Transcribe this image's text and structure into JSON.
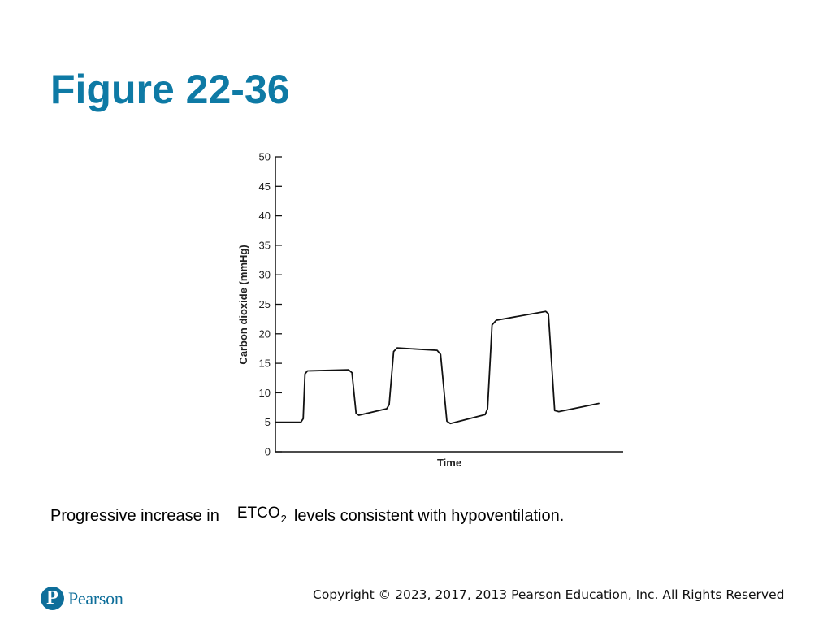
{
  "slide": {
    "title": "Figure 22-36",
    "caption_before": "Progressive increase in",
    "caption_etco": "ETCO",
    "caption_etco_sub": "2",
    "caption_after": "levels consistent with hypoventilation.",
    "logo_letter": "P",
    "logo_word": "Pearson",
    "copyright": "Copyright © 2023, 2017, 2013 Pearson Education, Inc. All Rights Reserved",
    "title_color": "#0e7aa5",
    "brand_color": "#0e6e9a"
  },
  "chart_data": {
    "type": "line",
    "title": "",
    "xlabel": "Time",
    "ylabel": "Carbon dioxide (mmHg)",
    "ylim": [
      0,
      50
    ],
    "yticks": [
      0,
      5,
      10,
      15,
      20,
      25,
      30,
      35,
      40,
      45,
      50
    ],
    "grid": false,
    "legend": "none",
    "line_color": "#111111",
    "series": [
      {
        "points": [
          [
            0.0,
            5.0
          ],
          [
            7.3,
            5.0
          ],
          [
            8.0,
            5.6
          ],
          [
            8.5,
            13.2
          ],
          [
            9.2,
            13.7
          ],
          [
            21.0,
            13.9
          ],
          [
            22.0,
            13.4
          ],
          [
            23.2,
            6.5
          ],
          [
            24.0,
            6.2
          ],
          [
            32.0,
            7.3
          ],
          [
            32.7,
            8.0
          ],
          [
            34.0,
            17.0
          ],
          [
            35.0,
            17.6
          ],
          [
            46.5,
            17.2
          ],
          [
            47.5,
            16.5
          ],
          [
            49.3,
            5.2
          ],
          [
            50.3,
            4.8
          ],
          [
            60.3,
            6.3
          ],
          [
            61.0,
            7.3
          ],
          [
            62.3,
            21.5
          ],
          [
            63.5,
            22.3
          ],
          [
            77.7,
            23.8
          ],
          [
            78.5,
            23.4
          ],
          [
            80.3,
            7.0
          ],
          [
            81.5,
            6.8
          ],
          [
            93.0,
            8.2
          ]
        ]
      }
    ]
  }
}
